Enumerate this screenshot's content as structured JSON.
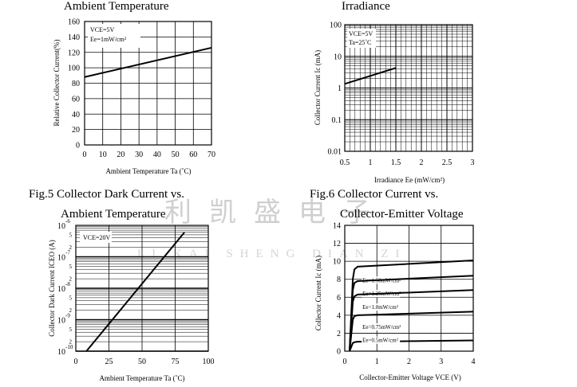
{
  "watermark": {
    "chinese": "利凯盛电子",
    "latin": "LI KAI SHENG DIAN ZI"
  },
  "chart_data": [
    {
      "id": "fig4",
      "type": "line",
      "title": "Ambient Temperature",
      "xlabel": "Ambient Temperature Ta (˚C)",
      "ylabel": "Relative Collector Current(%)",
      "xlim": [
        0,
        70
      ],
      "ylim": [
        0,
        160
      ],
      "xticks": [
        "0",
        "10",
        "20",
        "30",
        "40",
        "50",
        "60",
        "70"
      ],
      "yticks": [
        "0",
        "20",
        "40",
        "60",
        "80",
        "100",
        "120",
        "140",
        "160"
      ],
      "annotation": [
        "VCE=5V",
        "Ee=1mW/cm²"
      ],
      "grid": true,
      "series": [
        {
          "x": [
            0,
            70
          ],
          "y": [
            88,
            126
          ]
        }
      ]
    },
    {
      "id": "fig3",
      "type": "line",
      "title": "Irradiance",
      "xlabel": "Irradiance Ee (mW/cm²)",
      "ylabel": "Collector Current Ic (mA)",
      "xlim": [
        0.5,
        3
      ],
      "ylim": [
        0.01,
        100
      ],
      "yscale": "log",
      "xticks": [
        "0.5",
        "1",
        "1.5",
        "2",
        "2.5",
        "3"
      ],
      "yticks": [
        "0.01",
        "0.1",
        "1",
        "10",
        "100"
      ],
      "annotation": [
        "VCE=5V",
        "Ta=25˚C"
      ],
      "grid": true,
      "series": [
        {
          "x": [
            0.5,
            1.5
          ],
          "y": [
            1.35,
            4.3
          ]
        }
      ]
    },
    {
      "id": "fig5",
      "type": "line",
      "title": "Fig.5 Collector Dark Current vs.",
      "subtitle": "Ambient Temperature",
      "xlabel": "Ambient Temperature Ta (˚C)",
      "ylabel": "Collector Dark Current ICEO (A)",
      "xlim": [
        0,
        100
      ],
      "ylim": [
        1e-10,
        1e-06
      ],
      "yscale": "log",
      "xticks": [
        "0",
        "25",
        "50",
        "75",
        "100"
      ],
      "yticks": [
        {
          "base": "10",
          "exp": "-10"
        },
        {
          "base": "10",
          "exp": "-9"
        },
        {
          "base": "10",
          "exp": "-8"
        },
        {
          "base": "10",
          "exp": "-7"
        },
        {
          "base": "10",
          "exp": "-6"
        }
      ],
      "minor_labels": [
        "2",
        "5"
      ],
      "annotation": [
        "VCE=20V"
      ],
      "grid": true,
      "series": [
        {
          "x": [
            8,
            82
          ],
          "y": [
            1e-10,
            6e-07
          ]
        }
      ]
    },
    {
      "id": "fig6",
      "type": "line",
      "title": "Fig.6 Collector Current vs.",
      "subtitle": "Collector-Emitter Voltage",
      "xlabel": "Collector-Emitter Voltage VCE (V)",
      "ylabel": "Collector Current Ic (mA)",
      "xlim": [
        0,
        4
      ],
      "ylim": [
        0,
        14
      ],
      "xticks": [
        "0",
        "1",
        "2",
        "3",
        "4"
      ],
      "yticks": [
        "0",
        "2",
        "4",
        "6",
        "8",
        "10",
        "12",
        "14"
      ],
      "grid": true,
      "series": [
        {
          "name": "Ee=1.50mW/cm²",
          "x": [
            0.15,
            0.25,
            0.3,
            0.4,
            4
          ],
          "y": [
            0,
            8,
            9.1,
            9.4,
            10.1
          ]
        },
        {
          "name": "Ee=1.25mW/cm²",
          "x": [
            0.15,
            0.25,
            0.3,
            0.4,
            4
          ],
          "y": [
            0,
            6.8,
            7.6,
            7.8,
            8.4
          ]
        },
        {
          "name": "Ee=1.0mW/cm²",
          "x": [
            0.15,
            0.25,
            0.3,
            0.4,
            4
          ],
          "y": [
            0,
            5.5,
            6.1,
            6.3,
            6.8
          ]
        },
        {
          "name": "Ee=0.75mW/cm²",
          "x": [
            0.15,
            0.25,
            0.3,
            0.4,
            4
          ],
          "y": [
            0,
            3.5,
            3.9,
            4.0,
            4.4
          ]
        },
        {
          "name": "Ee=0.5mW/cm²",
          "x": [
            0.15,
            0.25,
            0.3,
            0.4,
            4
          ],
          "y": [
            0,
            0.9,
            1.0,
            1.05,
            1.2
          ]
        }
      ]
    }
  ]
}
